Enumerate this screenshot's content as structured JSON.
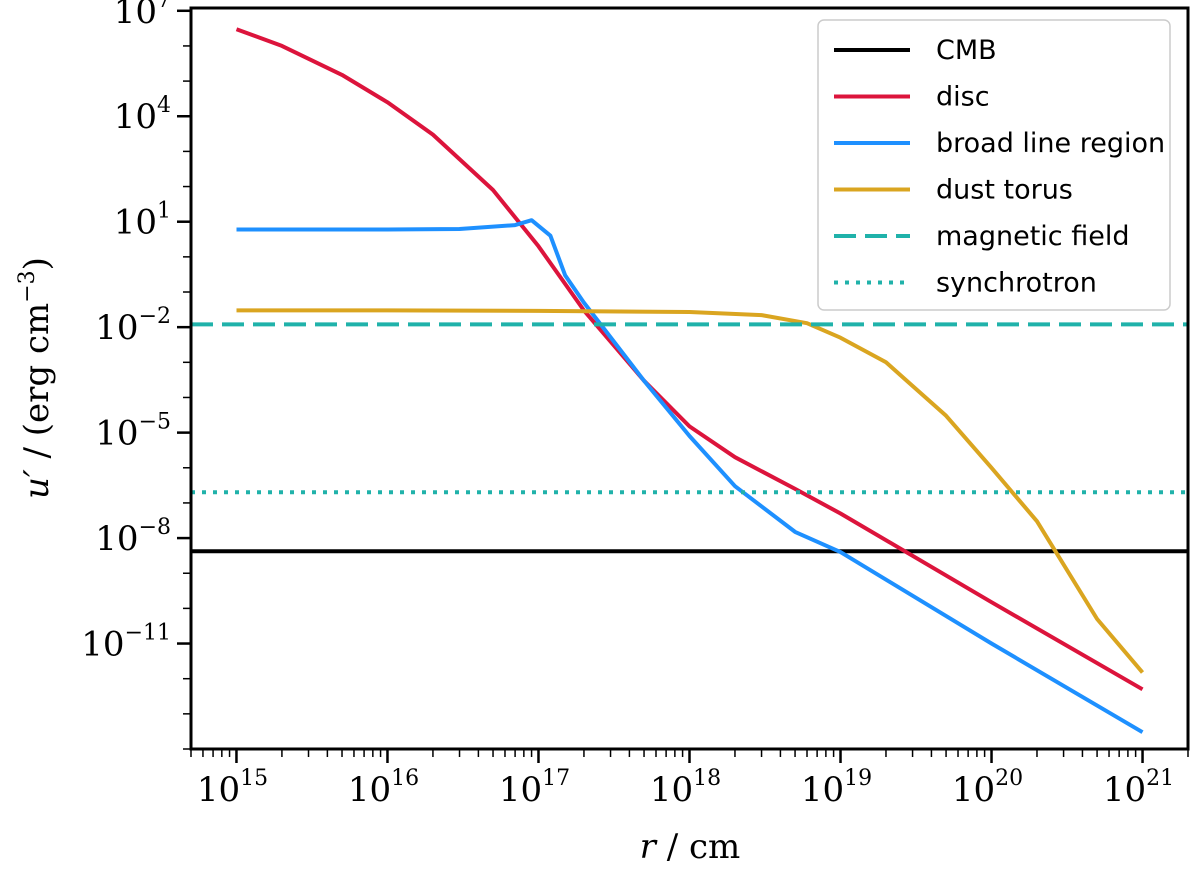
{
  "chart_data": {
    "type": "line",
    "xscale": "log",
    "yscale": "log",
    "xlim": [
      500000000000000.0,
      2e+21
    ],
    "ylim": [
      1e-14,
      12000000.0
    ],
    "x_ticks": [
      {
        "base": "10",
        "exp": "15"
      },
      {
        "base": "10",
        "exp": "16"
      },
      {
        "base": "10",
        "exp": "17"
      },
      {
        "base": "10",
        "exp": "18"
      },
      {
        "base": "10",
        "exp": "19"
      },
      {
        "base": "10",
        "exp": "20"
      },
      {
        "base": "10",
        "exp": "21"
      }
    ],
    "y_ticks": [
      {
        "base": "10",
        "exp": "7"
      },
      {
        "base": "10",
        "exp": "4"
      },
      {
        "base": "10",
        "exp": "1"
      },
      {
        "base": "10",
        "exp": "−2"
      },
      {
        "base": "10",
        "exp": "−5"
      },
      {
        "base": "10",
        "exp": "−8"
      },
      {
        "base": "10",
        "exp": "−11"
      }
    ],
    "xlabel": {
      "var": "r",
      "sep": " / ",
      "unit": "cm"
    },
    "ylabel": {
      "var": "u′",
      "sep": " / ",
      "unit_open": "(erg cm",
      "unit_exp": "−3",
      "unit_close": ")"
    },
    "legend_position": "top-right",
    "series": [
      {
        "name": "CMB",
        "color": "#000000",
        "dash": "solid",
        "points": [
          [
            500000000000000.0,
            4.2e-09
          ],
          [
            2e+21,
            4.2e-09
          ]
        ]
      },
      {
        "name": "disc",
        "color": "#dc143c",
        "dash": "solid",
        "points": [
          [
            1000000000000000.0,
            3000000.0
          ],
          [
            2000000000000000.0,
            1000000.0
          ],
          [
            5000000000000000.0,
            150000.0
          ],
          [
            1e+16,
            25000.0
          ],
          [
            2e+16,
            3000.0
          ],
          [
            5e+16,
            80
          ],
          [
            1e+17,
            2
          ],
          [
            2e+17,
            0.03
          ],
          [
            5e+17,
            0.0003
          ],
          [
            1e+18,
            1.5e-05
          ],
          [
            2e+18,
            2e-06
          ],
          [
            5e+18,
            2.5e-07
          ],
          [
            1e+19,
            5e-08
          ],
          [
            1e+20,
            1.5e-10
          ],
          [
            1e+21,
            5e-13
          ]
        ]
      },
      {
        "name": "broad line region",
        "color": "#1e90ff",
        "dash": "solid",
        "points": [
          [
            1000000000000000.0,
            6
          ],
          [
            5000000000000000.0,
            6
          ],
          [
            1e+16,
            6
          ],
          [
            3e+16,
            6.2
          ],
          [
            7e+16,
            8
          ],
          [
            9e+16,
            11
          ],
          [
            1.2e+17,
            4
          ],
          [
            1.5e+17,
            0.3
          ],
          [
            2e+17,
            0.05
          ],
          [
            5e+17,
            0.0003
          ],
          [
            1e+18,
            8e-06
          ],
          [
            2e+18,
            3e-07
          ],
          [
            5e+18,
            1.5e-08
          ],
          [
            1e+19,
            4e-09
          ],
          [
            1e+20,
            1e-11
          ],
          [
            1e+21,
            3e-14
          ]
        ]
      },
      {
        "name": "dust torus",
        "color": "#daa520",
        "dash": "solid",
        "points": [
          [
            1000000000000000.0,
            0.03
          ],
          [
            1e+16,
            0.03
          ],
          [
            1e+17,
            0.029
          ],
          [
            1e+18,
            0.027
          ],
          [
            3e+18,
            0.022
          ],
          [
            6e+18,
            0.013
          ],
          [
            1e+19,
            0.005
          ],
          [
            2e+19,
            0.001
          ],
          [
            5e+19,
            3e-05
          ],
          [
            1e+20,
            1e-06
          ],
          [
            2e+20,
            3e-08
          ],
          [
            5e+20,
            5e-11
          ],
          [
            1e+21,
            1.5e-12
          ]
        ]
      },
      {
        "name": "magnetic field",
        "color": "#20b2aa",
        "dash": "dashed",
        "points": [
          [
            500000000000000.0,
            0.012
          ],
          [
            2e+21,
            0.012
          ]
        ]
      },
      {
        "name": "synchrotron",
        "color": "#20b2aa",
        "dash": "dotted",
        "points": [
          [
            500000000000000.0,
            2e-07
          ],
          [
            2e+21,
            2e-07
          ]
        ]
      }
    ]
  }
}
